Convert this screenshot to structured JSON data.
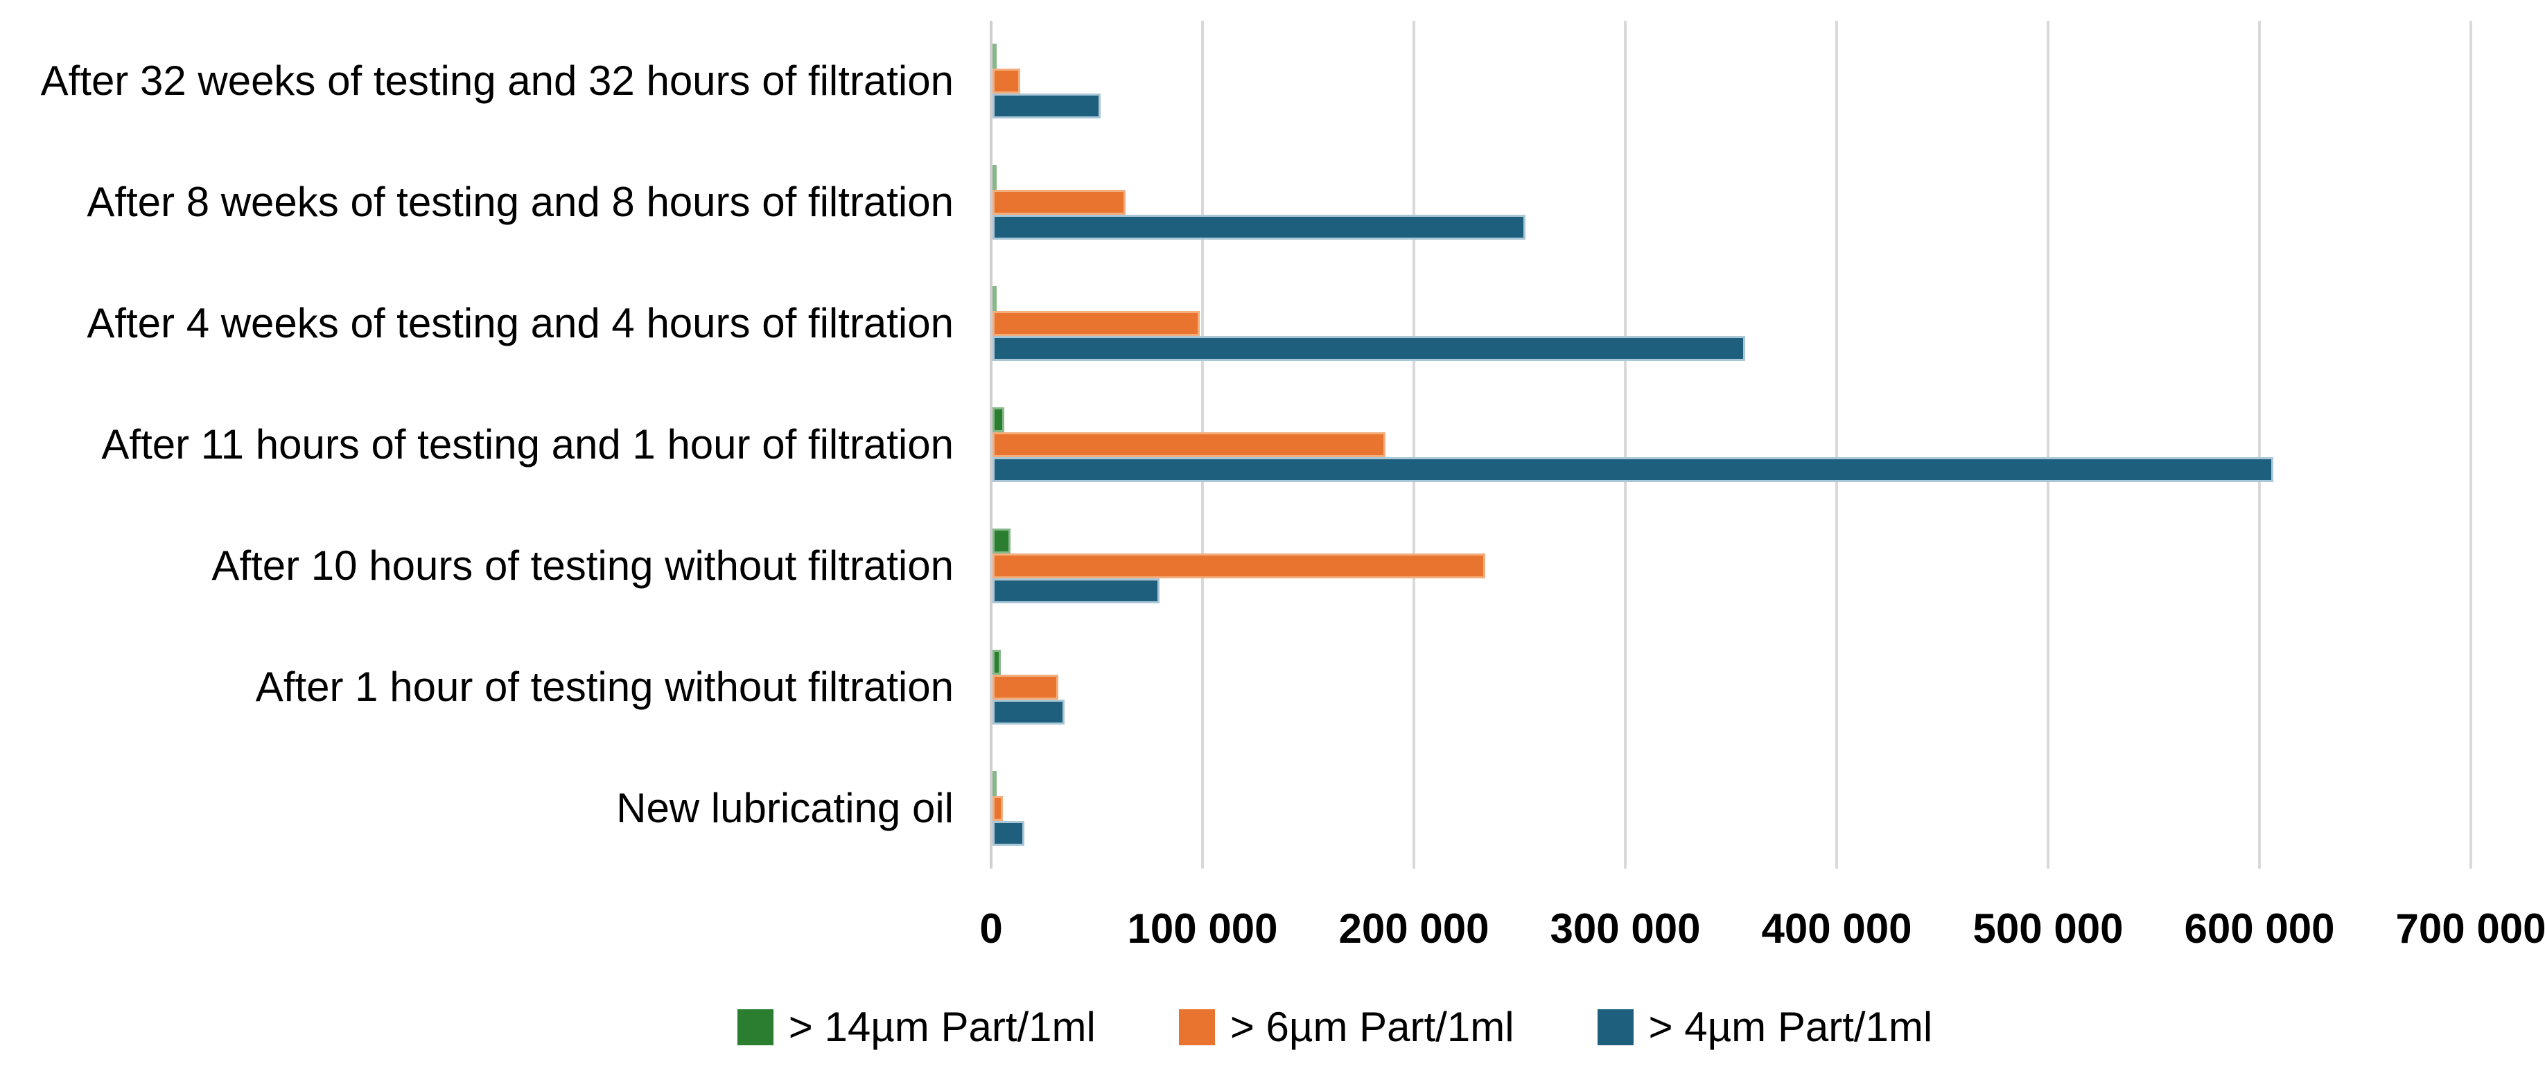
{
  "chart_data": {
    "type": "bar",
    "orientation": "horizontal",
    "title": "",
    "xlabel": "",
    "ylabel": "",
    "categories": [
      "After 32 weeks of testing and 32 hours of filtration",
      "After 8 weeks of testing and 8 hours of filtration",
      "After 4 weeks of testing and 4 hours of filtration",
      "After 11 hours of testing and 1 hour of filtration",
      "After 10 hours of testing without filtration",
      "After 1 hour of testing without filtration",
      "New lubricating oil"
    ],
    "series": [
      {
        "name": "> 14µm Part/1ml",
        "color": "#2B7D2F",
        "border_color": "#86B888",
        "values": [
          1500,
          1000,
          2000,
          5500,
          8500,
          4000,
          1200
        ]
      },
      {
        "name": "> 6µm Part/1ml",
        "color": "#E8742F",
        "border_color": "#F2AE7D",
        "values": [
          13000,
          63000,
          98000,
          186000,
          233000,
          31000,
          5000
        ]
      },
      {
        "name": "> 4µm Part/1ml",
        "color": "#1F5F7E",
        "border_color": "#A9C7D6",
        "values": [
          51000,
          252000,
          356000,
          606000,
          79000,
          34000,
          15000
        ]
      }
    ],
    "x_axis": {
      "min": 0,
      "max": 700000,
      "tick_step": 100000,
      "tick_labels": [
        "0",
        "100 000",
        "200 000",
        "300 000",
        "400 000",
        "500 000",
        "600 000",
        "700 000"
      ]
    },
    "grid": true,
    "legend_position": "bottom",
    "style_colors": {
      "gridline": "#D9D9D9",
      "axis_line": "#CFCFCF",
      "background": "#FFFFFF",
      "text": "#000000"
    }
  }
}
